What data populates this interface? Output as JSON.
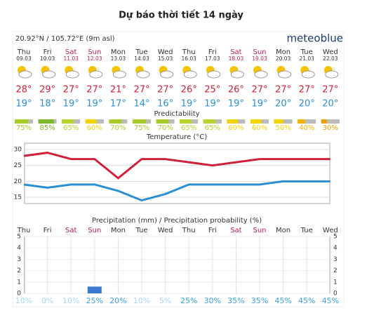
{
  "header": {
    "title": "Dự báo thời tiết 14 ngày",
    "location": "20.92°N / 105.72°E (9m asl)",
    "logo": "meteoblue"
  },
  "days": {
    "names": [
      "Thu",
      "Fri",
      "Sat",
      "Sun",
      "Mon",
      "Tue",
      "Wed",
      "Thu",
      "Fri",
      "Sat",
      "Sun",
      "Mon",
      "Tue",
      "Wed"
    ],
    "dates": [
      "09.03",
      "10.03",
      "11.03",
      "12.03",
      "13.03",
      "14.03",
      "15.03",
      "16.03",
      "17.03",
      "18.03",
      "19.03",
      "20.03",
      "21.03",
      "22.03"
    ],
    "weekend": [
      false,
      false,
      true,
      true,
      false,
      false,
      false,
      false,
      false,
      true,
      true,
      false,
      false,
      false
    ]
  },
  "temperature_max": {
    "values": [
      28,
      29,
      27,
      27,
      21,
      27,
      27,
      26,
      25,
      26,
      27,
      27,
      27,
      27
    ],
    "value_labels": [
      "28°",
      "29°",
      "27°",
      "27°",
      "21°",
      "27°",
      "27°",
      "26°",
      "25°",
      "26°",
      "27°",
      "27°",
      "27°",
      "27°"
    ],
    "color": "#d0203a"
  },
  "temperature_min": {
    "values": [
      19,
      18,
      19,
      19,
      17,
      14,
      16,
      19,
      19,
      19,
      19,
      20,
      20,
      20
    ],
    "value_labels": [
      "19°",
      "18°",
      "19°",
      "19°",
      "17°",
      "14°",
      "16°",
      "19°",
      "19°",
      "19°",
      "19°",
      "20°",
      "20°",
      "20°"
    ],
    "color": "#2a8fd0"
  },
  "predictability": {
    "label": "Predictability",
    "values": [
      75,
      85,
      65,
      60,
      70,
      75,
      70,
      65,
      65,
      60,
      60,
      50,
      40,
      30
    ],
    "value_labels": [
      "75%",
      "85%",
      "65%",
      "60%",
      "70%",
      "75%",
      "70%",
      "65%",
      "65%",
      "60%",
      "60%",
      "50%",
      "40%",
      "30%"
    ],
    "colors": [
      "#a8cc2a",
      "#7cb82a",
      "#b8d42a",
      "#f2d400",
      "#a8cc2a",
      "#a8cc2a",
      "#a8cc2a",
      "#b8d42a",
      "#b8d42a",
      "#f2d400",
      "#f2d400",
      "#f2d400",
      "#f0b400",
      "#f09c00"
    ]
  },
  "temperature_chart": {
    "label": "Temperature (°C)",
    "ylim": [
      13,
      32
    ],
    "yticks": [
      15,
      20,
      25,
      30
    ]
  },
  "precipitation_chart": {
    "label": "Precipitation (mm) / Precipitation probability (%)",
    "ylim": [
      0,
      5
    ],
    "yticks": [
      0,
      1,
      2,
      3,
      4,
      5
    ],
    "color": "#3a7ad0",
    "values": [
      0,
      0,
      0,
      0.6,
      0,
      0,
      0,
      0,
      0,
      0,
      0,
      0,
      0,
      0
    ],
    "probability": [
      10,
      0,
      10,
      25,
      20,
      10,
      5,
      25,
      30,
      35,
      35,
      45,
      45,
      45
    ],
    "probability_labels": [
      "10%",
      "0%",
      "10%",
      "25%",
      "20%",
      "10%",
      "5%",
      "25%",
      "30%",
      "35%",
      "35%",
      "45%",
      "45%",
      "45%"
    ]
  }
}
